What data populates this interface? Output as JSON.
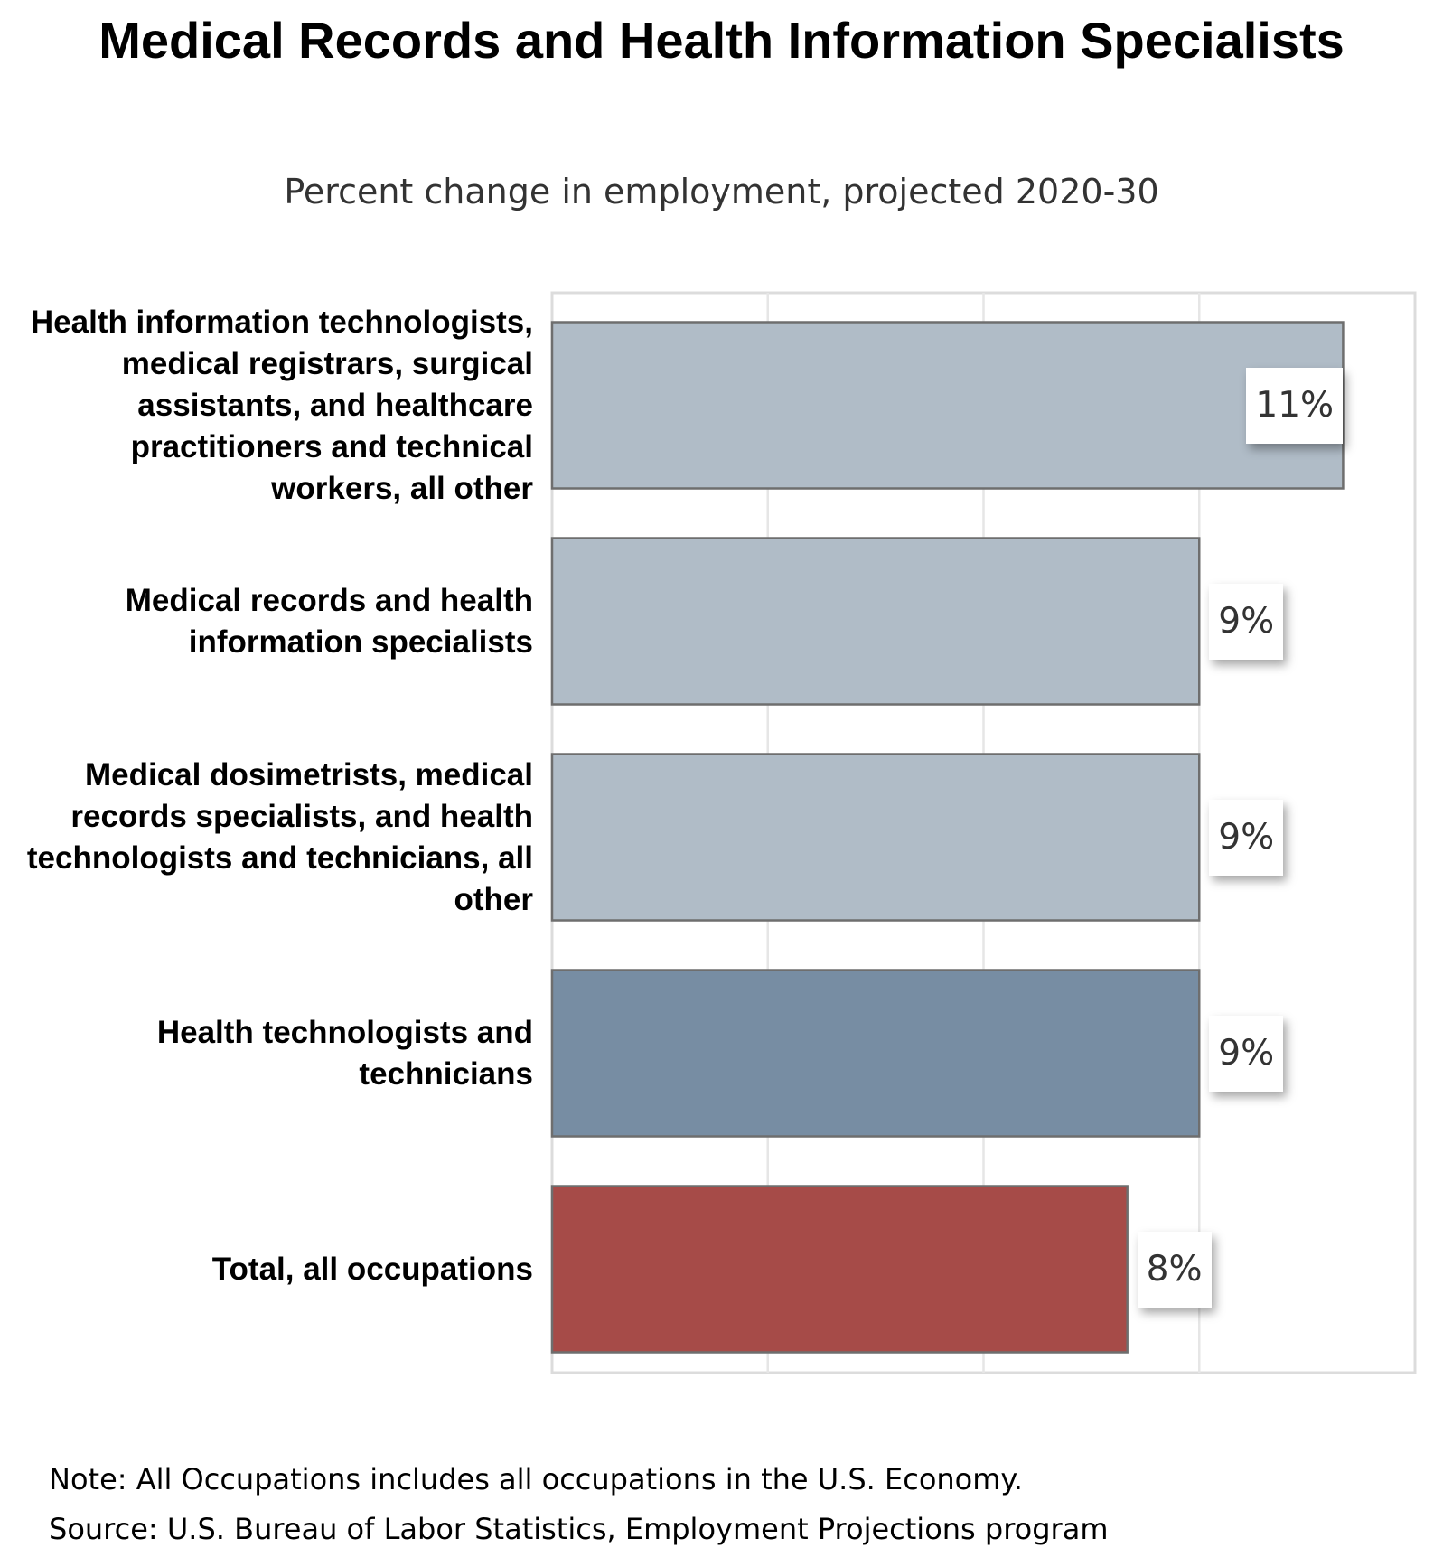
{
  "chart_data": {
    "type": "bar",
    "orientation": "horizontal",
    "title": "Medical Records and Health Information Specialists",
    "subtitle": "Percent change in employment, projected 2020-30",
    "categories": [
      "Health information technologists, medical registrars, surgical assistants, and healthcare practitioners and technical workers, all other",
      "Medical records and health information specialists",
      "Medical dosimetrists, medical records specialists, and health technologists and technicians, all other",
      "Health technologists and technicians",
      "Total, all occupations"
    ],
    "values": [
      11,
      9,
      9,
      9,
      8
    ],
    "data_labels": [
      "11%",
      "9%",
      "9%",
      "9%",
      "8%"
    ],
    "bar_colors": [
      "#b0bcc7",
      "#b0bcc7",
      "#b0bcc7",
      "#778da3",
      "#a64b48"
    ],
    "xlim": [
      0,
      12
    ],
    "grid_step": 3,
    "grid": true,
    "xlabel": "",
    "ylabel": ""
  },
  "notes": [
    "Note: All Occupations includes all occupations in the U.S. Economy.",
    "Source: U.S. Bureau of Labor Statistics, Employment Projections program"
  ]
}
